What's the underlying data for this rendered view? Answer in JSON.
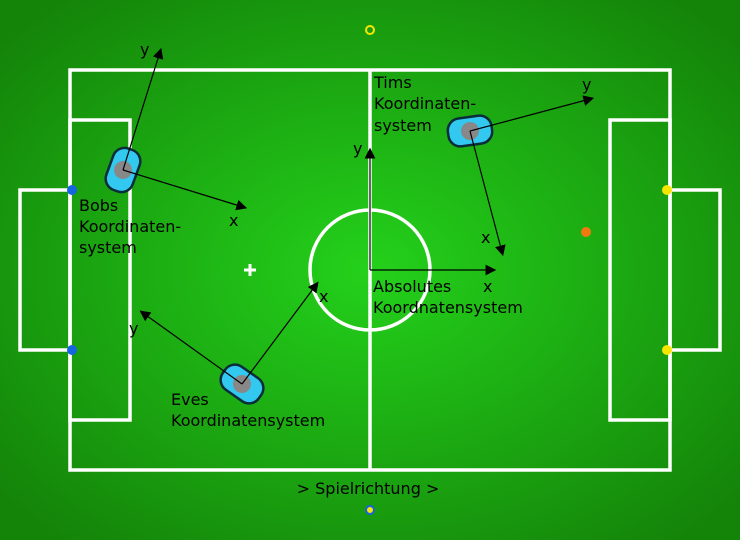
{
  "labels": {
    "bob_line1": "Bobs",
    "bob_line2": "Koordinaten-",
    "bob_line3": "system",
    "tim_line1": "Tims",
    "tim_line2": "Koordinaten-",
    "tim_line3": "system",
    "eve_line1": "Eves",
    "eve_line2": "Koordinatensystem",
    "abs_line1": "Absolutes",
    "abs_line2": "Koordnatensystem",
    "direction": "> Spielrichtung >"
  },
  "axis_labels": {
    "x": "x",
    "y": "y"
  },
  "colors": {
    "field_center": "#22cc1a",
    "field_edge": "#158a0c",
    "lines": "#ffffff",
    "goal_post_left": "#1565e0",
    "goal_post_right": "#f5e600",
    "ball": "#f07a10",
    "robot_body": "#33c8f0",
    "robot_center": "#888888",
    "top_marker": "#f5e600",
    "bottom_marker": "#1565e0"
  },
  "icons": {
    "robot": "robot-icon",
    "ball": "ball-icon",
    "penalty_mark": "plus-icon"
  }
}
